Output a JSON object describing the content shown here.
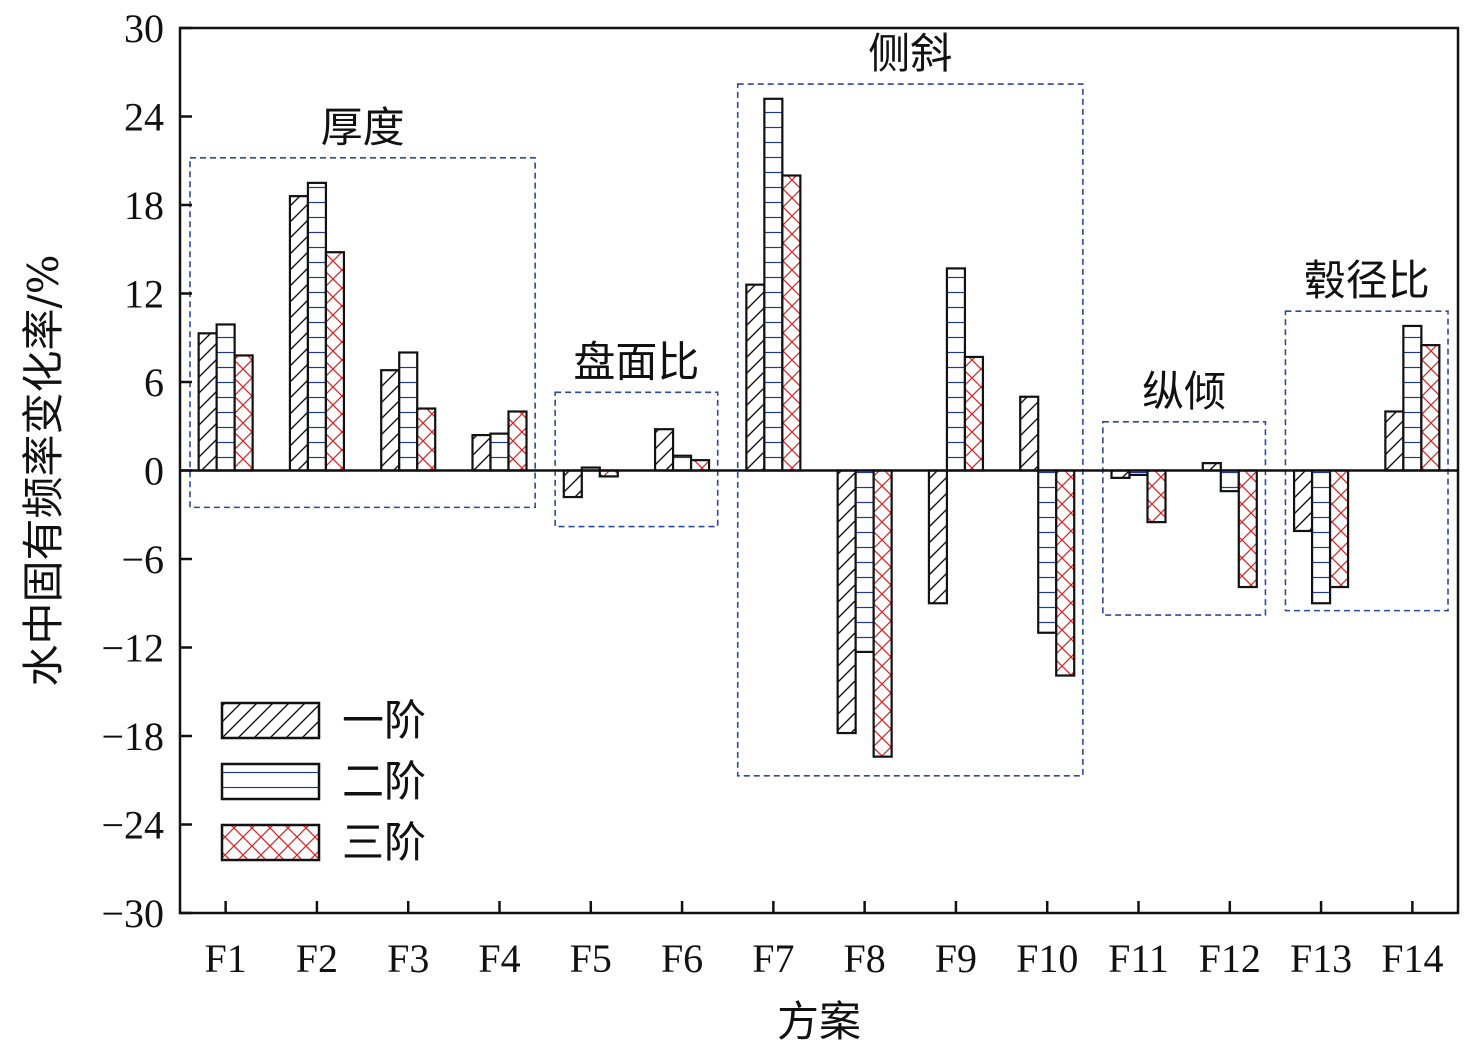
{
  "chart_data": {
    "type": "bar",
    "xlabel": "方案",
    "ylabel": "水中固有频率变化率/%",
    "ylim": [
      -30,
      30
    ],
    "yticks": [
      30,
      24,
      18,
      12,
      6,
      0,
      -6,
      -12,
      -18,
      -24,
      -30
    ],
    "ytick_labels": [
      "30",
      "24",
      "18",
      "12",
      "6",
      "0",
      "−6",
      "−12",
      "−18",
      "−24",
      "−30"
    ],
    "categories": [
      "F1",
      "F2",
      "F3",
      "F4",
      "F5",
      "F6",
      "F7",
      "F8",
      "F9",
      "F10",
      "F11",
      "F12",
      "F13",
      "F14"
    ],
    "series": [
      {
        "name": "一阶",
        "pattern": "diagonal-hatch",
        "color": "#111111",
        "values": [
          9.3,
          18.6,
          6.8,
          2.4,
          -1.8,
          2.8,
          12.6,
          -17.8,
          -9.0,
          5.0,
          -0.5,
          0.5,
          -4.1,
          4.0
        ]
      },
      {
        "name": "二阶",
        "pattern": "horizontal-lines",
        "color": "#1f3a93",
        "values": [
          9.9,
          19.5,
          8.0,
          2.5,
          0.2,
          1.0,
          25.2,
          -12.3,
          13.7,
          -11.0,
          -0.3,
          -1.4,
          -9.0,
          9.8
        ]
      },
      {
        "name": "三阶",
        "pattern": "crosshatch",
        "color": "#d62728",
        "values": [
          7.8,
          14.8,
          4.2,
          4.0,
          -0.4,
          0.7,
          20.0,
          -19.4,
          7.7,
          -13.9,
          -3.5,
          -7.9,
          -7.9,
          8.5
        ]
      }
    ],
    "groups": [
      {
        "label": "厚度",
        "from": "F1",
        "to": "F4",
        "ymin": -2.5,
        "ymax": 21.2
      },
      {
        "label": "盘面比",
        "from": "F5",
        "to": "F6",
        "ymin": -3.8,
        "ymax": 5.3
      },
      {
        "label": "侧斜",
        "from": "F7",
        "to": "F10",
        "ymin": -20.7,
        "ymax": 26.2
      },
      {
        "label": "纵倾",
        "from": "F11",
        "to": "F12",
        "ymin": -9.8,
        "ymax": 3.3
      },
      {
        "label": "毂径比",
        "from": "F13",
        "to": "F14",
        "ymin": -9.5,
        "ymax": 10.8
      }
    ],
    "legend_position": "bottom-left",
    "grid": false
  }
}
